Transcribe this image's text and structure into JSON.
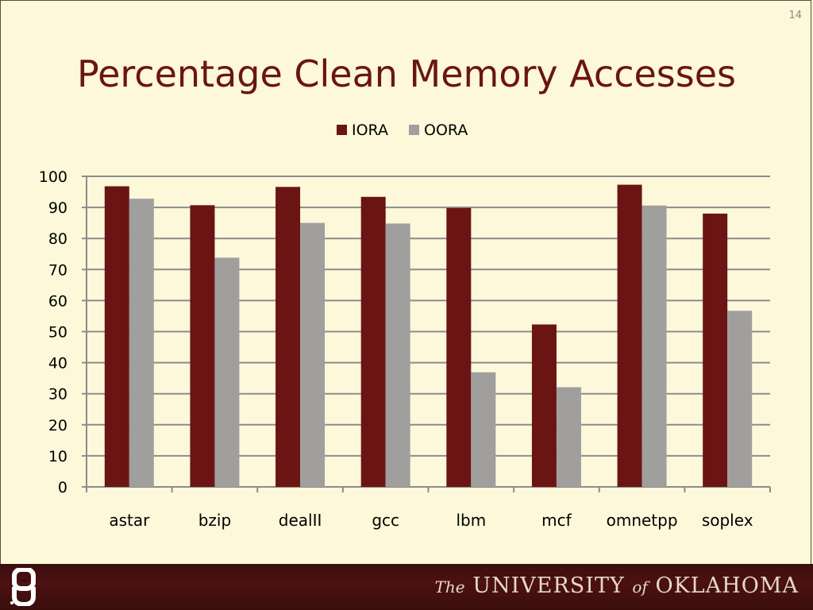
{
  "slide": {
    "number": "14",
    "title": "Percentage Clean Memory Accesses"
  },
  "footer": {
    "the": "The",
    "university": "UNIVERSITY",
    "of": "of",
    "state": "OKLAHOMA"
  },
  "colors": {
    "iora": "#6b1414",
    "oora": "#a19e9e",
    "grid": "#8c8c8c",
    "background": "#fcf8d9",
    "title": "#6b1414"
  },
  "chart_data": {
    "type": "bar",
    "title": "",
    "xlabel": "",
    "ylabel": "",
    "categories": [
      "astar",
      "bzip",
      "dealII",
      "gcc",
      "lbm",
      "mcf",
      "omnetpp",
      "soplex"
    ],
    "series": [
      {
        "name": "IORA",
        "values": [
          96.8,
          90.7,
          96.6,
          93.4,
          89.8,
          52.3,
          97.3,
          88.0
        ]
      },
      {
        "name": "OORA",
        "values": [
          92.8,
          73.8,
          85.0,
          84.8,
          36.9,
          32.1,
          90.6,
          56.7
        ]
      }
    ],
    "ylim": [
      0,
      100
    ],
    "yticks": [
      0,
      10,
      20,
      30,
      40,
      50,
      60,
      70,
      80,
      90,
      100
    ],
    "grid": true,
    "legend": "top-center"
  }
}
